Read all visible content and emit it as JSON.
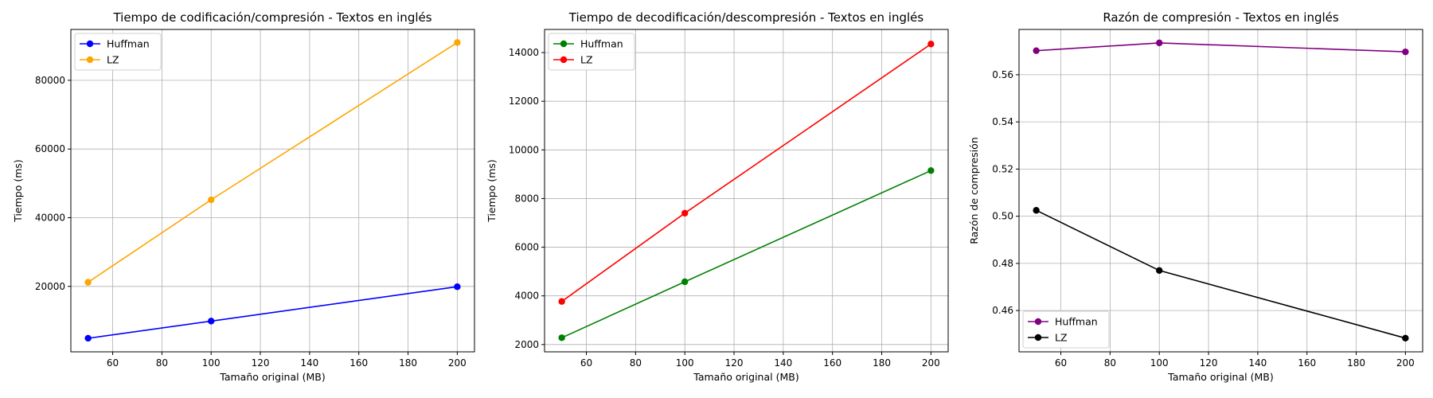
{
  "chart_data": [
    {
      "type": "line",
      "title": "Tiempo de codificación/compresión - Textos en inglés",
      "xlabel": "Tamaño original (MB)",
      "ylabel": "Tiempo (ms)",
      "x": [
        50,
        100,
        200
      ],
      "xlim": [
        43,
        207
      ],
      "ylim": [
        950,
        94800
      ],
      "xticks": [
        60,
        80,
        100,
        120,
        140,
        160,
        180,
        200
      ],
      "yticks": [
        20000,
        40000,
        60000,
        80000
      ],
      "grid": true,
      "legend_position": "top-left",
      "series": [
        {
          "name": "Huffman",
          "color": "#0000ff",
          "values": [
            4900,
            9900,
            19900
          ]
        },
        {
          "name": "LZ",
          "color": "#ffa500",
          "values": [
            21200,
            45200,
            91000
          ]
        }
      ]
    },
    {
      "type": "line",
      "title": "Tiempo de decodificación/descompresión - Textos en inglés",
      "xlabel": "Tamaño original (MB)",
      "ylabel": "Tiempo (ms)",
      "x": [
        50,
        100,
        200
      ],
      "xlim": [
        43,
        207
      ],
      "ylim": [
        1700,
        14950
      ],
      "xticks": [
        60,
        80,
        100,
        120,
        140,
        160,
        180,
        200
      ],
      "yticks": [
        2000,
        4000,
        6000,
        8000,
        10000,
        12000,
        14000
      ],
      "grid": true,
      "legend_position": "top-left",
      "series": [
        {
          "name": "Huffman",
          "color": "#008000",
          "values": [
            2280,
            4580,
            9150
          ]
        },
        {
          "name": "LZ",
          "color": "#ff0000",
          "values": [
            3770,
            7400,
            14350
          ]
        }
      ]
    },
    {
      "type": "line",
      "title": "Razón de compresión - Textos en inglés",
      "xlabel": "Tamaño original (MB)",
      "ylabel": "Razón de compresión",
      "x": [
        50,
        100,
        200
      ],
      "xlim": [
        43,
        207
      ],
      "ylim": [
        0.4425,
        0.5792
      ],
      "xticks": [
        60,
        80,
        100,
        120,
        140,
        160,
        180,
        200
      ],
      "yticks": [
        0.46,
        0.48,
        0.5,
        0.52,
        0.54,
        0.56
      ],
      "grid": true,
      "legend_position": "bottom-left",
      "series": [
        {
          "name": "Huffman",
          "color": "#800080",
          "values": [
            0.5702,
            0.5735,
            0.5697
          ]
        },
        {
          "name": "LZ",
          "color": "#000000",
          "values": [
            0.5025,
            0.477,
            0.4483
          ]
        }
      ]
    }
  ]
}
